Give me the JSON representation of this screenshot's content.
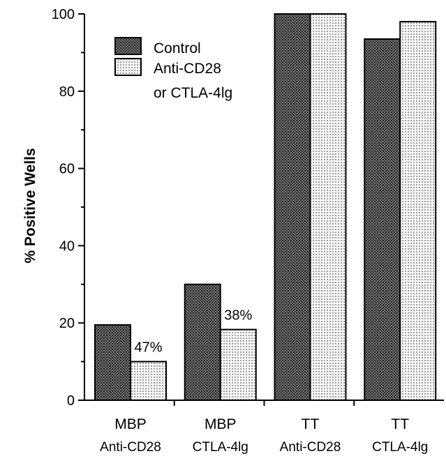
{
  "chart_data": {
    "type": "bar",
    "ylabel": "% Positive Wells",
    "ylim": [
      0,
      100
    ],
    "yticks": [
      0,
      20,
      40,
      60,
      80,
      100
    ],
    "categories": [
      {
        "line1": "MBP",
        "line2": "Anti-CD28"
      },
      {
        "line1": "MBP",
        "line2": "CTLA-4lg"
      },
      {
        "line1": "TT",
        "line2": "Anti-CD28"
      },
      {
        "line1": "TT",
        "line2": "CTLA-4lg"
      }
    ],
    "series": [
      {
        "name": "Control",
        "values": [
          19.5,
          30,
          100,
          93.5
        ]
      },
      {
        "name": "Anti-CD28\nor CTLA-4lg",
        "values": [
          10,
          18.3,
          100,
          98
        ]
      }
    ],
    "annotations": [
      {
        "category_index": 0,
        "text": "47%"
      },
      {
        "category_index": 1,
        "text": "38%"
      }
    ],
    "legend": {
      "position": "top-left",
      "entries": [
        {
          "line1": "Control",
          "line2": ""
        },
        {
          "line1": "Anti-CD28",
          "line2": "or CTLA-4lg"
        }
      ]
    },
    "grid": false
  }
}
